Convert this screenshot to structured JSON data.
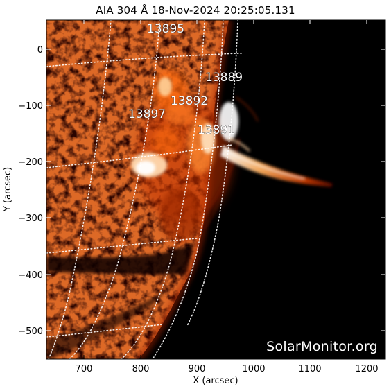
{
  "title": "AIA 304 Å 18-Nov-2024 20:25:05.131",
  "x_axis": {
    "label": "X (arcsec)",
    "ticks": [
      "700",
      "800",
      "900",
      "1000",
      "1100",
      "1200"
    ],
    "range": [
      633,
      1237
    ]
  },
  "y_axis": {
    "label": "Y (arcsec)",
    "ticks": [
      "0",
      "−100",
      "−200",
      "−300",
      "−400",
      "−500"
    ],
    "range": [
      -552,
      48
    ]
  },
  "active_regions": [
    {
      "id": "13895"
    },
    {
      "id": "13889"
    },
    {
      "id": "13892"
    },
    {
      "id": "13897"
    },
    {
      "id": "13891"
    }
  ],
  "watermark": "SolarMonitor.org",
  "colors": {
    "background": "#000000",
    "hot": "#ffffff",
    "warm": "#ff7a1a",
    "mid": "#b02800",
    "dim": "#3a0600",
    "frame": "#ffffff"
  }
}
